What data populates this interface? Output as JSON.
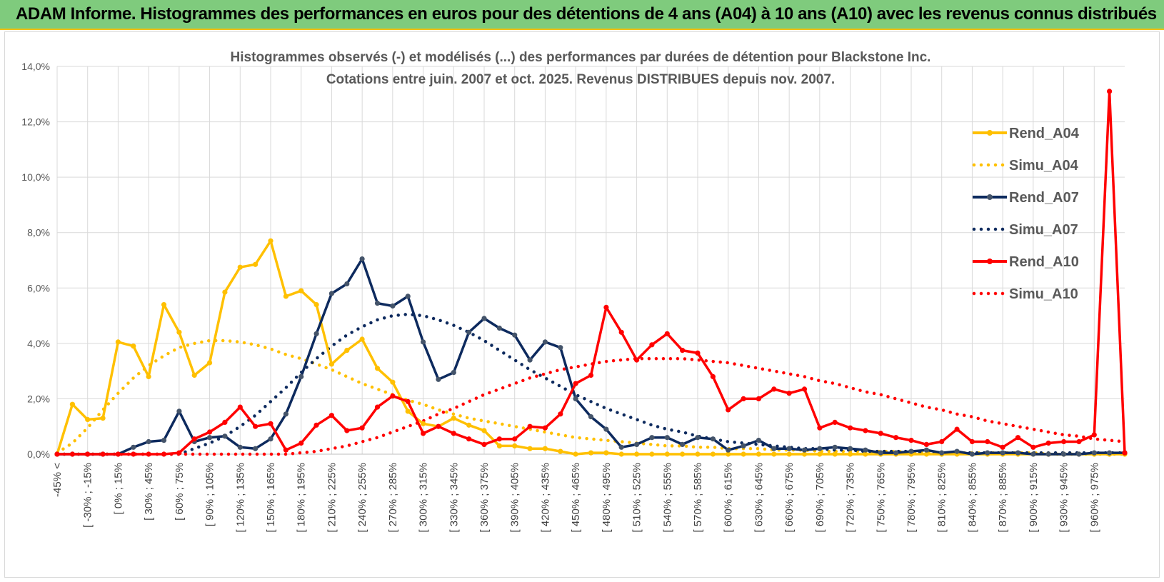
{
  "header": {
    "title": "ADAM Informe. Histogrammes des performances en euros pour des détentions de 4 ans (A04) à 10 ans (A10) avec les revenus connus distribués"
  },
  "chart_data": {
    "type": "line",
    "title": "Histogrammes observés (-) et modélisés (...) des performances par durées de détention pour Blackstone Inc.",
    "subtitle": "Cotations entre juin. 2007 et oct. 2025.  Revenus DISTRIBUES depuis nov. 2007.",
    "xlabel": "",
    "ylabel": "",
    "ylim": [
      0,
      14
    ],
    "y_ticks": [
      "0,0%",
      "2,0%",
      "4,0%",
      "6,0%",
      "8,0%",
      "10,0%",
      "12,0%",
      "14,0%"
    ],
    "grid": true,
    "legend_position": "right",
    "x_tick_labels": [
      "-45% <",
      "[ -30% ; -15%",
      "[ 0% ; 15%",
      "[ 30% ; 45%",
      "[ 60% ; 75%",
      "[ 90% ; 105%",
      "[ 120% ; 135%",
      "[ 150% ; 165%",
      "[ 180% ; 195%",
      "[ 210% ; 225%",
      "[ 240% ; 255%",
      "[ 270% ; 285%",
      "[ 300% ; 315%",
      "[ 330% ; 345%",
      "[ 360% ; 375%",
      "[ 390% ; 405%",
      "[ 420% ; 435%",
      "[ 450% ; 465%",
      "[ 480% ; 495%",
      "[ 510% ; 525%",
      "[ 540% ; 555%",
      "[ 570% ; 585%",
      "[ 600% ; 615%",
      "[ 630% ; 645%",
      "[ 660% ; 675%",
      "[ 690% ; 705%",
      "[ 720% ; 735%",
      "[ 750% ; 765%",
      "[ 780% ; 795%",
      "[ 810% ; 825%",
      "[ 840% ; 855%",
      "[ 870% ; 885%",
      "[ 900% ; 915%",
      "[ 930% ; 945%",
      "[ 960% ; 975%"
    ],
    "series": [
      {
        "name": "Rend_A04",
        "style": "solid",
        "color": "#ffc000",
        "values": [
          0.0,
          1.8,
          1.25,
          1.3,
          4.05,
          3.9,
          2.8,
          5.4,
          4.4,
          2.85,
          3.3,
          5.85,
          6.75,
          6.85,
          7.7,
          5.7,
          5.9,
          5.4,
          3.25,
          3.75,
          4.15,
          3.1,
          2.6,
          1.55,
          1.1,
          1.0,
          1.3,
          1.05,
          0.85,
          0.3,
          0.3,
          0.2,
          0.2,
          0.1,
          0.0,
          0.05,
          0.05,
          0.0,
          0.0,
          0.0,
          0.0,
          0.0,
          0.0,
          0.0,
          0.0,
          0.0,
          0.0,
          0.0,
          0.0,
          0.0,
          0.0,
          0.0,
          0.0,
          0.0,
          0.0,
          0.0,
          0.0,
          0.0,
          0.0,
          0.0,
          0.0,
          0.0,
          0.0,
          0.0,
          0.0,
          0.0,
          0.0,
          0.0,
          0.0,
          0.0,
          0.0
        ]
      },
      {
        "name": "Simu_A04",
        "style": "dotted",
        "color": "#ffc000",
        "values": [
          0.05,
          0.4,
          0.95,
          1.6,
          2.2,
          2.75,
          3.2,
          3.55,
          3.85,
          4.0,
          4.1,
          4.1,
          4.05,
          3.95,
          3.8,
          3.6,
          3.45,
          3.25,
          3.05,
          2.8,
          2.55,
          2.35,
          2.15,
          1.95,
          1.8,
          1.6,
          1.45,
          1.3,
          1.2,
          1.1,
          1.0,
          0.9,
          0.8,
          0.7,
          0.6,
          0.55,
          0.5,
          0.45,
          0.4,
          0.35,
          0.3,
          0.3,
          0.25,
          0.25,
          0.2,
          0.2,
          0.2,
          0.15,
          0.15,
          0.15,
          0.1,
          0.1,
          0.1,
          0.1,
          0.1,
          0.1,
          0.05,
          0.05,
          0.05,
          0.05,
          0.05,
          0.05,
          0.05,
          0.05,
          0.05,
          0.0,
          0.0,
          0.0,
          0.0,
          0.0,
          0.0
        ]
      },
      {
        "name": "Rend_A07",
        "style": "solid",
        "color": "#0d2a5e",
        "values": [
          0.0,
          0.0,
          0.0,
          0.0,
          0.0,
          0.25,
          0.45,
          0.5,
          1.55,
          0.45,
          0.6,
          0.65,
          0.25,
          0.2,
          0.55,
          1.45,
          2.8,
          4.35,
          5.8,
          6.15,
          7.05,
          5.45,
          5.35,
          5.7,
          4.05,
          2.7,
          2.95,
          4.4,
          4.9,
          4.55,
          4.3,
          3.4,
          4.05,
          3.85,
          2.0,
          1.35,
          0.9,
          0.25,
          0.35,
          0.6,
          0.6,
          0.35,
          0.6,
          0.55,
          0.15,
          0.3,
          0.5,
          0.2,
          0.2,
          0.15,
          0.2,
          0.25,
          0.2,
          0.15,
          0.05,
          0.05,
          0.1,
          0.15,
          0.05,
          0.1,
          0.0,
          0.05,
          0.05,
          0.05,
          0.0,
          0.0,
          0.0,
          0.0,
          0.05,
          0.05,
          0.05
        ]
      },
      {
        "name": "Simu_A07",
        "style": "dotted",
        "color": "#0d2a5e",
        "values": [
          0.0,
          0.0,
          0.0,
          0.0,
          0.0,
          0.0,
          0.0,
          0.0,
          0.0,
          0.2,
          0.4,
          0.65,
          1.0,
          1.4,
          1.9,
          2.4,
          2.95,
          3.45,
          3.9,
          4.3,
          4.6,
          4.85,
          5.0,
          5.05,
          5.0,
          4.85,
          4.65,
          4.4,
          4.1,
          3.75,
          3.4,
          3.05,
          2.75,
          2.45,
          2.15,
          1.9,
          1.65,
          1.45,
          1.25,
          1.05,
          0.9,
          0.8,
          0.65,
          0.55,
          0.45,
          0.4,
          0.35,
          0.3,
          0.25,
          0.2,
          0.2,
          0.15,
          0.15,
          0.1,
          0.1,
          0.1,
          0.1,
          0.05,
          0.05,
          0.05,
          0.05,
          0.05,
          0.05,
          0.05,
          0.05,
          0.05,
          0.05,
          0.05,
          0.05,
          0.05,
          0.05
        ]
      },
      {
        "name": "Rend_A10",
        "style": "solid",
        "color": "#ff0000",
        "values": [
          0.0,
          0.0,
          0.0,
          0.0,
          0.0,
          0.0,
          0.0,
          0.0,
          0.05,
          0.55,
          0.8,
          1.15,
          1.7,
          1.0,
          1.1,
          0.15,
          0.4,
          1.05,
          1.4,
          0.85,
          0.95,
          1.7,
          2.1,
          1.9,
          0.75,
          1.0,
          0.75,
          0.55,
          0.35,
          0.55,
          0.55,
          1.0,
          0.95,
          1.45,
          2.55,
          2.85,
          5.3,
          4.4,
          3.4,
          3.95,
          4.35,
          3.75,
          3.65,
          2.8,
          1.6,
          2.0,
          2.0,
          2.35,
          2.2,
          2.35,
          0.95,
          1.15,
          0.95,
          0.85,
          0.75,
          0.6,
          0.5,
          0.35,
          0.45,
          0.9,
          0.45,
          0.45,
          0.25,
          0.6,
          0.25,
          0.4,
          0.45,
          0.45,
          0.7,
          13.1,
          0.05
        ]
      },
      {
        "name": "Simu_A10",
        "style": "dotted",
        "color": "#ff0000",
        "values": [
          0.0,
          0.0,
          0.0,
          0.0,
          0.0,
          0.0,
          0.0,
          0.0,
          0.0,
          0.0,
          0.0,
          0.0,
          0.0,
          0.0,
          0.0,
          0.0,
          0.05,
          0.1,
          0.2,
          0.3,
          0.45,
          0.6,
          0.8,
          1.0,
          1.2,
          1.45,
          1.65,
          1.9,
          2.15,
          2.35,
          2.55,
          2.75,
          2.9,
          3.05,
          3.15,
          3.25,
          3.35,
          3.4,
          3.45,
          3.45,
          3.45,
          3.45,
          3.4,
          3.35,
          3.3,
          3.2,
          3.1,
          3.0,
          2.9,
          2.8,
          2.65,
          2.55,
          2.4,
          2.25,
          2.15,
          2.0,
          1.85,
          1.7,
          1.6,
          1.45,
          1.35,
          1.2,
          1.1,
          1.0,
          0.9,
          0.8,
          0.7,
          0.65,
          0.55,
          0.5,
          0.45
        ]
      }
    ]
  }
}
